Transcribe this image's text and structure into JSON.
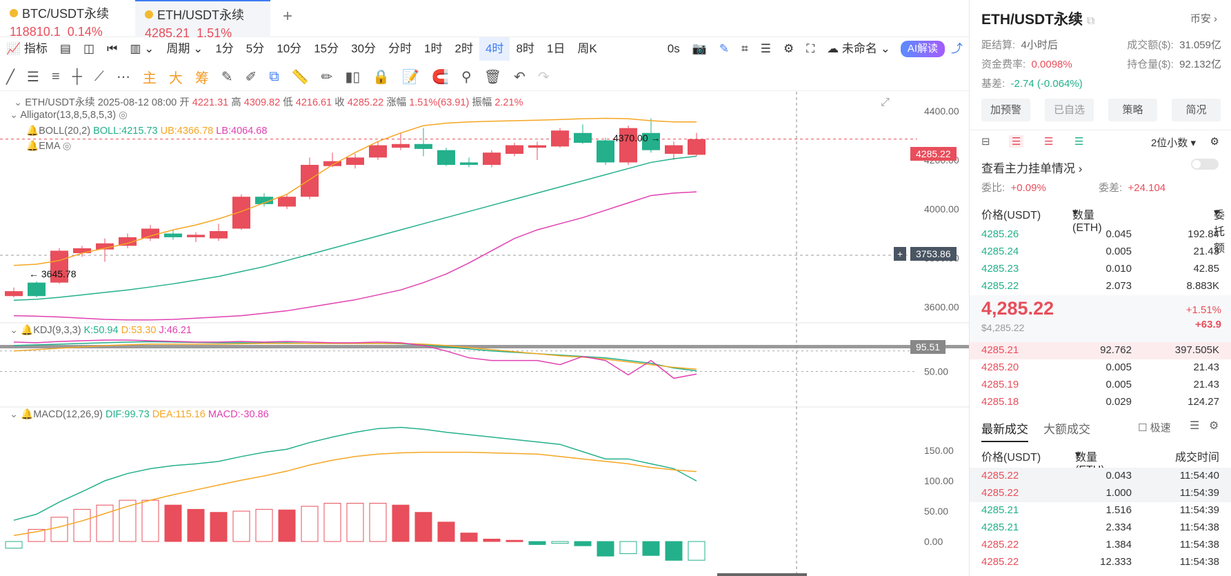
{
  "tabs": [
    {
      "name": "BTC/USDT永续",
      "price": "118810.1",
      "change": "0.14%"
    },
    {
      "name": "ETH/USDT永续",
      "price": "4285.21",
      "change": "1.51%"
    }
  ],
  "toolbar": {
    "indicator": "指标",
    "period": "周期",
    "intervals": [
      "1分",
      "5分",
      "10分",
      "15分",
      "30分",
      "分时",
      "1时",
      "2时",
      "4时",
      "8时",
      "1日",
      "周K"
    ],
    "active_interval": "4时",
    "countdown": "0s",
    "layout_name": "未命名",
    "ai": "AI解读"
  },
  "draw_tools": {
    "main": "主",
    "big": "大",
    "chips": "筹"
  },
  "chart_legend": {
    "symbol": "ETH/USDT永续",
    "date": "2025-08-12 08:00",
    "open_label": "开",
    "open": "4221.31",
    "high_label": "高",
    "high": "4309.82",
    "low_label": "低",
    "low": "4216.61",
    "close_label": "收",
    "close": "4285.22",
    "change_label": "涨幅",
    "change": "1.51%(63.91)",
    "amp_label": "振幅",
    "amp": "2.21%",
    "alligator": "Alligator(13,8,5,8,5,3)",
    "boll": "BOLL(20,2)",
    "boll_mid": "BOLL:4215.73",
    "boll_ub": "UB:4366.78",
    "boll_lb": "LB:4064.68",
    "ema": "EMA",
    "kdj": "KDJ(9,3,3)",
    "kdj_k": "K:50.94",
    "kdj_d": "D:53.30",
    "kdj_j": "J:46.21",
    "macd": "MACD(12,26,9)",
    "macd_dif": "DIF:99.73",
    "macd_dea": "DEA:115.16",
    "macd_val": "MACD:-30.86"
  },
  "axis": {
    "main": [
      "4400.00",
      "4200.00",
      "4000.00",
      "3800.00",
      "3600.00"
    ],
    "kdj": [
      "50.00"
    ],
    "macd": [
      "150.00",
      "100.00",
      "50.00",
      "0.00"
    ]
  },
  "markers": {
    "high_mark": "4370.00",
    "low_mark": "3645.78",
    "current_price": "4285.22",
    "crosshair_price": "3753.86",
    "kdj_tag": "95.51"
  },
  "chart_data": {
    "type": "candlestick",
    "title": "ETH/USDT永续 4时",
    "ylim": [
      3550,
      4450
    ],
    "candles": [
      {
        "o": 3645,
        "c": 3665,
        "h": 3680,
        "l": 3640
      },
      {
        "o": 3700,
        "c": 3645,
        "h": 3705,
        "l": 3640
      },
      {
        "o": 3700,
        "c": 3830,
        "h": 3840,
        "l": 3695
      },
      {
        "o": 3820,
        "c": 3840,
        "h": 3850,
        "l": 3805
      },
      {
        "o": 3835,
        "c": 3860,
        "h": 3880,
        "l": 3785
      },
      {
        "o": 3850,
        "c": 3885,
        "h": 3900,
        "l": 3840
      },
      {
        "o": 3880,
        "c": 3920,
        "h": 3935,
        "l": 3870
      },
      {
        "o": 3900,
        "c": 3885,
        "h": 3915,
        "l": 3875
      },
      {
        "o": 3885,
        "c": 3895,
        "h": 3905,
        "l": 3865
      },
      {
        "o": 3880,
        "c": 3910,
        "h": 3940,
        "l": 3870
      },
      {
        "o": 3920,
        "c": 4050,
        "h": 4060,
        "l": 3915
      },
      {
        "o": 4050,
        "c": 4020,
        "h": 4065,
        "l": 4010
      },
      {
        "o": 4010,
        "c": 4050,
        "h": 4060,
        "l": 4000
      },
      {
        "o": 4050,
        "c": 4180,
        "h": 4210,
        "l": 4040
      },
      {
        "o": 4175,
        "c": 4195,
        "h": 4230,
        "l": 4170
      },
      {
        "o": 4180,
        "c": 4210,
        "h": 4225,
        "l": 4165
      },
      {
        "o": 4210,
        "c": 4260,
        "h": 4275,
        "l": 4200
      },
      {
        "o": 4250,
        "c": 4265,
        "h": 4310,
        "l": 4240
      },
      {
        "o": 4265,
        "c": 4245,
        "h": 4330,
        "l": 4215
      },
      {
        "o": 4240,
        "c": 4180,
        "h": 4250,
        "l": 4175
      },
      {
        "o": 4190,
        "c": 4180,
        "h": 4210,
        "l": 4170
      },
      {
        "o": 4180,
        "c": 4230,
        "h": 4240,
        "l": 4170
      },
      {
        "o": 4225,
        "c": 4260,
        "h": 4270,
        "l": 4215
      },
      {
        "o": 4250,
        "c": 4260,
        "h": 4275,
        "l": 4200
      },
      {
        "o": 4255,
        "c": 4320,
        "h": 4330,
        "l": 4250
      },
      {
        "o": 4310,
        "c": 4270,
        "h": 4345,
        "l": 4265
      },
      {
        "o": 4280,
        "c": 4190,
        "h": 4290,
        "l": 4180
      },
      {
        "o": 4190,
        "c": 4330,
        "h": 4340,
        "l": 4180
      },
      {
        "o": 4310,
        "c": 4240,
        "h": 4370,
        "l": 4230
      },
      {
        "o": 4225,
        "c": 4260,
        "h": 4275,
        "l": 4200
      },
      {
        "o": 4221,
        "c": 4285,
        "h": 4310,
        "l": 4216
      }
    ],
    "boll_ub": [
      3770,
      3775,
      3790,
      3820,
      3840,
      3860,
      3890,
      3915,
      3935,
      3960,
      3990,
      4025,
      4060,
      4120,
      4180,
      4230,
      4275,
      4310,
      4340,
      4350,
      4355,
      4358,
      4360,
      4362,
      4365,
      4368,
      4370,
      4368,
      4360,
      4355,
      4355
    ],
    "boll_mid": [
      3628,
      3632,
      3640,
      3650,
      3660,
      3670,
      3682,
      3695,
      3710,
      3725,
      3745,
      3765,
      3790,
      3815,
      3840,
      3865,
      3890,
      3915,
      3940,
      3965,
      3990,
      4015,
      4040,
      4065,
      4090,
      4115,
      4140,
      4165,
      4190,
      4205,
      4215
    ],
    "boll_lb": [
      3565,
      3563,
      3560,
      3555,
      3550,
      3548,
      3548,
      3550,
      3555,
      3560,
      3565,
      3575,
      3585,
      3600,
      3615,
      3630,
      3650,
      3670,
      3700,
      3735,
      3780,
      3830,
      3880,
      3915,
      3940,
      3965,
      3995,
      4025,
      4055,
      4065,
      4070
    ],
    "kdj_k": [
      88,
      89,
      90,
      91,
      92,
      93,
      93.5,
      93,
      92.5,
      92,
      92,
      91.5,
      92,
      91,
      91,
      91,
      91,
      90.5,
      89,
      86,
      83,
      80,
      78,
      76,
      74,
      72,
      70,
      66,
      62,
      55,
      50.94
    ],
    "kdj_d": [
      80,
      82,
      84,
      86,
      88,
      89,
      90,
      90,
      90,
      90,
      90.5,
      91,
      91,
      91,
      91,
      91,
      91,
      91,
      90,
      88,
      85,
      82,
      79,
      76,
      73,
      71,
      68,
      64,
      60,
      56,
      53.3
    ],
    "kdj_j": [
      93,
      92,
      94,
      95,
      96,
      96,
      95,
      94,
      93,
      93,
      94,
      93,
      94,
      93,
      92,
      92,
      93,
      92,
      88,
      80,
      70,
      66,
      66,
      66,
      60,
      72,
      66,
      45,
      66,
      40,
      46.21
    ],
    "macd_dif": [
      35,
      45,
      65,
      82,
      100,
      112,
      120,
      125,
      128,
      132,
      140,
      147,
      152,
      163,
      172,
      180,
      186,
      188,
      185,
      180,
      176,
      172,
      168,
      164,
      160,
      148,
      136,
      136,
      128,
      120,
      99.73
    ],
    "macd_dea": [
      10,
      16,
      24,
      34,
      46,
      58,
      68,
      77,
      85,
      93,
      101,
      108,
      116,
      126,
      134,
      140,
      144,
      146,
      147,
      147,
      147,
      146,
      145,
      144,
      140,
      136,
      132,
      128,
      122,
      118,
      115.16
    ],
    "macd_hist": [
      -11,
      20,
      40,
      53,
      60,
      68,
      68,
      60,
      53,
      48,
      50,
      53,
      52,
      58,
      63,
      63,
      63,
      60,
      48,
      32,
      14,
      4,
      2,
      -5,
      -3,
      -7,
      -24,
      -20,
      -23,
      -31,
      -30.86
    ]
  },
  "right": {
    "title": "ETH/USDT永续",
    "exchange": "币安",
    "settle_label": "距结算:",
    "settle": "4小时后",
    "vol_label": "成交额($):",
    "vol": "31.059亿",
    "funding_label": "资金费率:",
    "funding": "0.0098%",
    "oi_label": "持仓量($):",
    "oi": "92.132亿",
    "basis_label": "基差:",
    "basis": "-2.74 (-0.064%)",
    "buttons": [
      "加预警",
      "已自选",
      "策略",
      "简况"
    ],
    "decimals": "2位小数",
    "big_orders": "查看主力挂单情况",
    "ratio_label": "委比:",
    "ratio": "+0.09%",
    "diff_label": "委差:",
    "diff": "+24.104",
    "ob_headers": [
      "价格(USDT)",
      "数量 (ETH)",
      "委托额"
    ],
    "asks": [
      {
        "price": "4285.26",
        "qty": "0.045",
        "amt": "192.84"
      },
      {
        "price": "4285.24",
        "qty": "0.005",
        "amt": "21.43"
      },
      {
        "price": "4285.23",
        "qty": "0.010",
        "amt": "42.85"
      },
      {
        "price": "4285.22",
        "qty": "2.073",
        "amt": "8.883K"
      }
    ],
    "last_price": "4,285.22",
    "last_usd": "$4,285.22",
    "last_pct": "+1.51%",
    "last_chg": "+63.9",
    "bids": [
      {
        "price": "4285.21",
        "qty": "92.762",
        "amt": "397.505K"
      },
      {
        "price": "4285.20",
        "qty": "0.005",
        "amt": "21.43"
      },
      {
        "price": "4285.19",
        "qty": "0.005",
        "amt": "21.43"
      },
      {
        "price": "4285.18",
        "qty": "0.029",
        "amt": "124.27"
      }
    ],
    "trade_tabs": [
      "最新成交",
      "大额成交"
    ],
    "fast": "极速",
    "trade_headers": [
      "价格(USDT)",
      "数量(ETH)",
      "成交时间"
    ],
    "trades": [
      {
        "price": "4285.22",
        "qty": "0.043",
        "time": "11:54:40",
        "side": "sell"
      },
      {
        "price": "4285.22",
        "qty": "1.000",
        "time": "11:54:39",
        "side": "sell"
      },
      {
        "price": "4285.21",
        "qty": "1.516",
        "time": "11:54:39",
        "side": "buy"
      },
      {
        "price": "4285.21",
        "qty": "2.334",
        "time": "11:54:38",
        "side": "buy"
      },
      {
        "price": "4285.22",
        "qty": "1.384",
        "time": "11:54:38",
        "side": "sell"
      },
      {
        "price": "4285.22",
        "qty": "12.333",
        "time": "11:54:38",
        "side": "sell"
      }
    ]
  }
}
